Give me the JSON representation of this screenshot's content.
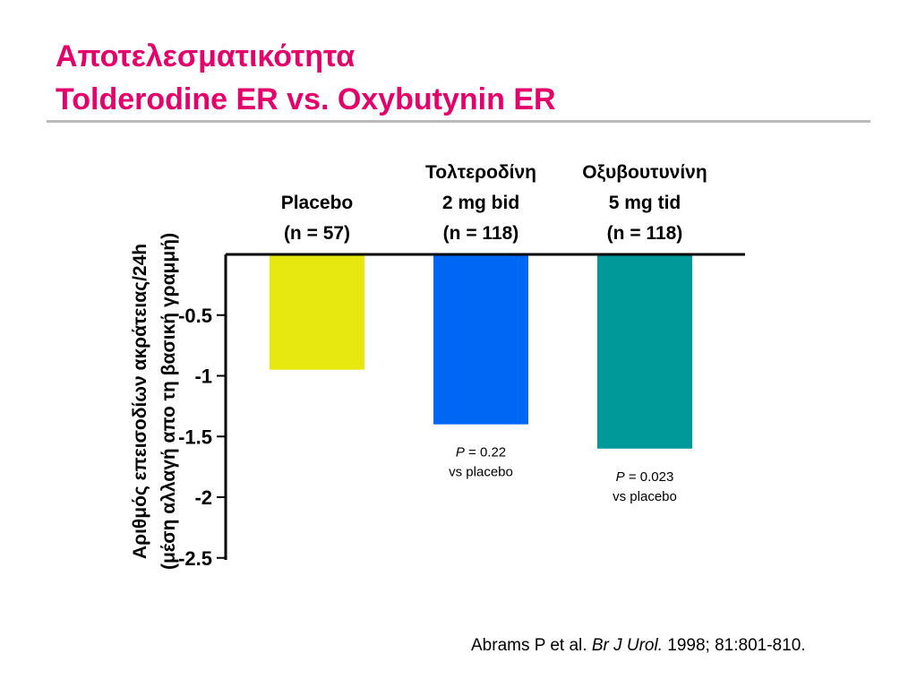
{
  "title": {
    "line1": "Αποτελεσματικότητα",
    "line2": "Tolderodine ER vs. Oxybutynin ER"
  },
  "citation": {
    "authors": "Abrams P et al. ",
    "journal": "Br J Urol.",
    "details": " 1998; 81:801-810."
  },
  "colors": {
    "title": "#e3006b",
    "placebo": "#e6e810",
    "tolterodine": "#0066f4",
    "oxybutynin": "#00999a"
  },
  "chart_data": {
    "type": "bar",
    "ylabel_lines": [
      "Αριθμός επεισοδίων ακράτειας/24h",
      "(μέση αλλαγή απο τη βασική γραμμή)"
    ],
    "ylim": [
      0,
      -2.5
    ],
    "yticks": [
      -0.5,
      -1,
      -1.5,
      -2,
      -2.5
    ],
    "ytick_labels": [
      "-0.5",
      "-1",
      "-1.5",
      "-2",
      "-2.5"
    ],
    "grid": false,
    "categories": [
      {
        "lines": [
          "Placebo",
          "(n = 57)"
        ],
        "value": -0.95,
        "color": "#e6e810",
        "p_label": "",
        "p_value": "",
        "p_note": ""
      },
      {
        "lines": [
          "Τολτεροδίνη",
          "2 mg bid",
          "(n = 118)"
        ],
        "value": -1.4,
        "color": "#0066f4",
        "p_label": "P",
        "p_value": " = 0.22",
        "p_note": "vs placebo"
      },
      {
        "lines": [
          "Οξυβουτυνίνη",
          "5 mg tid",
          "(n = 118)"
        ],
        "value": -1.6,
        "color": "#00999a",
        "p_label": "P",
        "p_value": " = 0.023",
        "p_note": "vs placebo"
      }
    ]
  }
}
